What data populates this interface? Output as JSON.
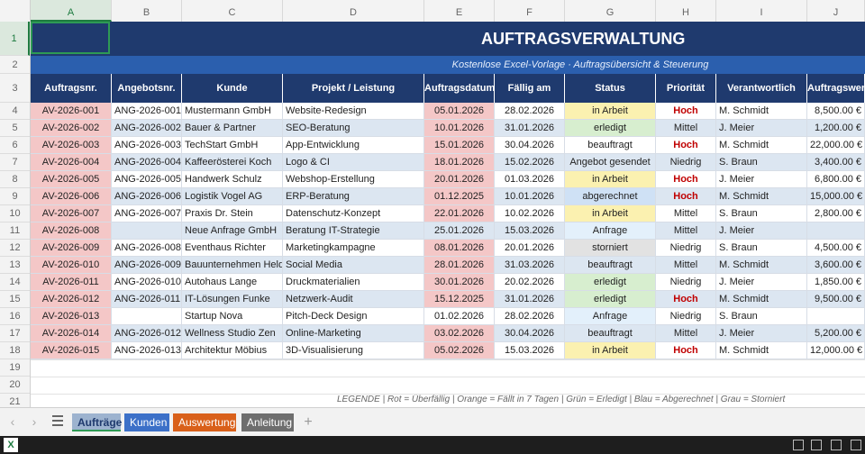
{
  "columns": [
    "A",
    "B",
    "C",
    "D",
    "E",
    "F",
    "G",
    "H",
    "I",
    "J"
  ],
  "rows": [
    "1",
    "2",
    "3",
    "4",
    "5",
    "6",
    "7",
    "8",
    "9",
    "10",
    "11",
    "12",
    "13",
    "14",
    "15",
    "16",
    "17",
    "18",
    "19",
    "20",
    "21"
  ],
  "title": "AUFTRAGSVERWALTUNG",
  "subtitle": "Kostenlose Excel-Vorlage · Auftragsübersicht & Steuerung",
  "headers": [
    "Auftragsnr.",
    "Angebotsnr.",
    "Kunde",
    "Projekt / Leistung",
    "Auftragsdatum",
    "Fällig am",
    "Status",
    "Priorität",
    "Verantwortlich",
    "Auftragswert"
  ],
  "orders": [
    {
      "nr": "AV-2026-001",
      "ang": "ANG-2026-001",
      "kunde": "Mustermann GmbH",
      "projekt": "Website-Redesign",
      "datum": "05.01.2026",
      "faellig": "28.02.2026",
      "status": "in Arbeit",
      "prio": "Hoch",
      "verant": "M. Schmidt",
      "wert": "8,500.00 €"
    },
    {
      "nr": "AV-2026-002",
      "ang": "ANG-2026-002",
      "kunde": "Bauer & Partner",
      "projekt": "SEO-Beratung",
      "datum": "10.01.2026",
      "faellig": "31.01.2026",
      "status": "erledigt",
      "prio": "Mittel",
      "verant": "J. Meier",
      "wert": "1,200.00 €"
    },
    {
      "nr": "AV-2026-003",
      "ang": "ANG-2026-003",
      "kunde": "TechStart GmbH",
      "projekt": "App-Entwicklung",
      "datum": "15.01.2026",
      "faellig": "30.04.2026",
      "status": "beauftragt",
      "prio": "Hoch",
      "verant": "M. Schmidt",
      "wert": "22,000.00 €"
    },
    {
      "nr": "AV-2026-004",
      "ang": "ANG-2026-004",
      "kunde": "Kaffeerösterei Koch",
      "projekt": "Logo & CI",
      "datum": "18.01.2026",
      "faellig": "15.02.2026",
      "status": "Angebot gesendet",
      "prio": "Niedrig",
      "verant": "S. Braun",
      "wert": "3,400.00 €"
    },
    {
      "nr": "AV-2026-005",
      "ang": "ANG-2026-005",
      "kunde": "Handwerk Schulz",
      "projekt": "Webshop-Erstellung",
      "datum": "20.01.2026",
      "faellig": "01.03.2026",
      "status": "in Arbeit",
      "prio": "Hoch",
      "verant": "J. Meier",
      "wert": "6,800.00 €"
    },
    {
      "nr": "AV-2026-006",
      "ang": "ANG-2026-006",
      "kunde": "Logistik Vogel AG",
      "projekt": "ERP-Beratung",
      "datum": "01.12.2025",
      "faellig": "10.01.2026",
      "status": "abgerechnet",
      "prio": "Hoch",
      "verant": "M. Schmidt",
      "wert": "15,000.00 €"
    },
    {
      "nr": "AV-2026-007",
      "ang": "ANG-2026-007",
      "kunde": "Praxis Dr. Stein",
      "projekt": "Datenschutz-Konzept",
      "datum": "22.01.2026",
      "faellig": "10.02.2026",
      "status": "in Arbeit",
      "prio": "Mittel",
      "verant": "S. Braun",
      "wert": "2,800.00 €"
    },
    {
      "nr": "AV-2026-008",
      "ang": "",
      "kunde": "Neue Anfrage GmbH",
      "projekt": "Beratung IT-Strategie",
      "datum": "25.01.2026",
      "faellig": "15.03.2026",
      "status": "Anfrage",
      "prio": "Mittel",
      "verant": "J. Meier",
      "wert": ""
    },
    {
      "nr": "AV-2026-009",
      "ang": "ANG-2026-008",
      "kunde": "Eventhaus Richter",
      "projekt": "Marketingkampagne",
      "datum": "08.01.2026",
      "faellig": "20.01.2026",
      "status": "storniert",
      "prio": "Niedrig",
      "verant": "S. Braun",
      "wert": "4,500.00 €"
    },
    {
      "nr": "AV-2026-010",
      "ang": "ANG-2026-009",
      "kunde": "Bauunternehmen Held",
      "projekt": "Social Media",
      "datum": "28.01.2026",
      "faellig": "31.03.2026",
      "status": "beauftragt",
      "prio": "Mittel",
      "verant": "M. Schmidt",
      "wert": "3,600.00 €"
    },
    {
      "nr": "AV-2026-011",
      "ang": "ANG-2026-010",
      "kunde": "Autohaus Lange",
      "projekt": "Druckmaterialien",
      "datum": "30.01.2026",
      "faellig": "20.02.2026",
      "status": "erledigt",
      "prio": "Niedrig",
      "verant": "J. Meier",
      "wert": "1,850.00 €"
    },
    {
      "nr": "AV-2026-012",
      "ang": "ANG-2026-011",
      "kunde": "IT-Lösungen Funke",
      "projekt": "Netzwerk-Audit",
      "datum": "15.12.2025",
      "faellig": "31.01.2026",
      "status": "erledigt",
      "prio": "Hoch",
      "verant": "M. Schmidt",
      "wert": "9,500.00 €"
    },
    {
      "nr": "AV-2026-013",
      "ang": "",
      "kunde": "Startup Nova",
      "projekt": "Pitch-Deck Design",
      "datum": "01.02.2026",
      "faellig": "28.02.2026",
      "status": "Anfrage",
      "prio": "Niedrig",
      "verant": "S. Braun",
      "wert": ""
    },
    {
      "nr": "AV-2026-014",
      "ang": "ANG-2026-012",
      "kunde": "Wellness Studio Zen",
      "projekt": "Online-Marketing",
      "datum": "03.02.2026",
      "faellig": "30.04.2026",
      "status": "beauftragt",
      "prio": "Mittel",
      "verant": "J. Meier",
      "wert": "5,200.00 €"
    },
    {
      "nr": "AV-2026-015",
      "ang": "ANG-2026-013",
      "kunde": "Architektur Möbius",
      "projekt": "3D-Visualisierung",
      "datum": "05.02.2026",
      "faellig": "15.03.2026",
      "status": "in Arbeit",
      "prio": "Hoch",
      "verant": "M. Schmidt",
      "wert": "12,000.00 €"
    }
  ],
  "legend": "LEGENDE  |  Rot = Überfällig   |  Orange = Fällt in 7 Tagen   |  Grün = Erledigt   |  Blau = Abgerechnet   |  Grau = Storniert",
  "tabs": [
    {
      "label": "Aufträge",
      "color": "#9db3cf",
      "text": "#1f3a6e"
    },
    {
      "label": "Kunden",
      "color": "#3c70c8",
      "text": "#ffffff"
    },
    {
      "label": "Auswertung",
      "color": "#d9601a",
      "text": "#ffffff"
    },
    {
      "label": "Anleitung",
      "color": "#6e6e6e",
      "text": "#ffffff"
    }
  ],
  "icons": {
    "nav_prev": "chevron-left-icon",
    "nav_next": "chevron-right-icon",
    "menu": "hamburger-icon",
    "add": "plus-icon",
    "app": "excel-icon"
  },
  "colors": {
    "banner": "#1f3a6e",
    "subbanner": "#2b5fae",
    "row_alt": "#dce6f1",
    "overdue_nr": "#f4c7c7",
    "status_in_arbeit": "#fbf1b0",
    "status_erledigt": "#d7eecf",
    "status_abgerechnet": "#cfe1f5",
    "status_storniert": "#e2e2e2",
    "status_anfrage": "#e3f0fb",
    "prio_hoch": "#c00000"
  }
}
